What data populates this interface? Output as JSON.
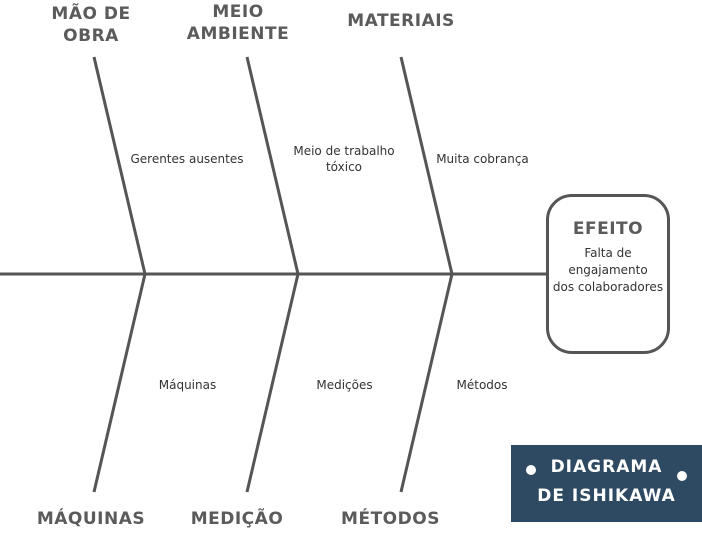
{
  "categories": {
    "mao_de_obra": {
      "line1": "MÃO DE",
      "line2": "OBRA"
    },
    "meio_ambiente": {
      "line1": "MEIO",
      "line2": "AMBIENTE"
    },
    "materiais": {
      "label": "MATERIAIS"
    },
    "maquinas": {
      "label": "MÁQUINAS"
    },
    "medicao": {
      "label": "MEDIÇÃO"
    },
    "metodos": {
      "label": "MÉTODOS"
    }
  },
  "causes": {
    "mao_de_obra": "Gerentes ausentes",
    "meio_ambiente": {
      "line1": "Meio de trabalho",
      "line2": "tóxico"
    },
    "materiais": "Muita cobrança",
    "maquinas": "Máquinas",
    "medicao": "Medições",
    "metodos": "Métodos"
  },
  "effect": {
    "title": "EFEITO",
    "line1": "Falta de",
    "line2": "engajamento",
    "line3": "dos colaboradores"
  },
  "brand": {
    "line1": "DIAGRAMA",
    "line2": "DE ISHIKAWA"
  },
  "colors": {
    "line": "#555555",
    "text": "#333333",
    "heading": "#5b5b5b",
    "brand_bg": "#2e4a63",
    "brand_text": "#ffffff"
  }
}
